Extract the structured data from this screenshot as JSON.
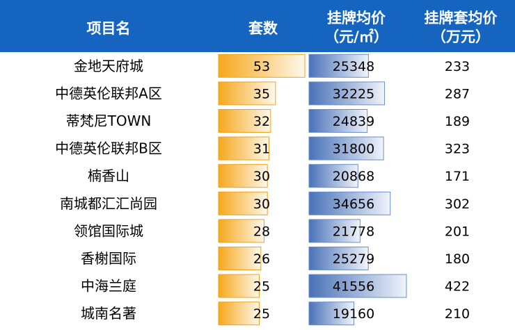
{
  "chart_data": {
    "type": "table",
    "columns": [
      "项目名",
      "套数",
      "挂牌均价",
      "挂牌套均价"
    ],
    "column_units": [
      "",
      "",
      "（元/㎡）",
      "（万元）"
    ],
    "rows": [
      {
        "name": "金地天府城",
        "units": 53,
        "avg_price": 25348,
        "total_price": 233
      },
      {
        "name": "中德英伦联邦A区",
        "units": 35,
        "avg_price": 32225,
        "total_price": 287
      },
      {
        "name": "蒂梵尼TOWN",
        "units": 32,
        "avg_price": 24839,
        "total_price": 189
      },
      {
        "name": "中德英伦联邦B区",
        "units": 31,
        "avg_price": 31800,
        "total_price": 323
      },
      {
        "name": "楠香山",
        "units": 30,
        "avg_price": 20868,
        "total_price": 171
      },
      {
        "name": "南城都汇汇尚园",
        "units": 30,
        "avg_price": 34656,
        "total_price": 302
      },
      {
        "name": "领馆国际城",
        "units": 28,
        "avg_price": 21778,
        "total_price": 201
      },
      {
        "name": "香榭国际",
        "units": 26,
        "avg_price": 25279,
        "total_price": 180
      },
      {
        "name": "中海兰庭",
        "units": 25,
        "avg_price": 41556,
        "total_price": 422
      },
      {
        "name": "城南名著",
        "units": 25,
        "avg_price": 19160,
        "total_price": 210
      }
    ],
    "colors": {
      "header_bg": "#1565C0",
      "header_text": "#FFFFFF",
      "units_bar": "#F5A623",
      "price_bar": "#4A72B8"
    }
  }
}
